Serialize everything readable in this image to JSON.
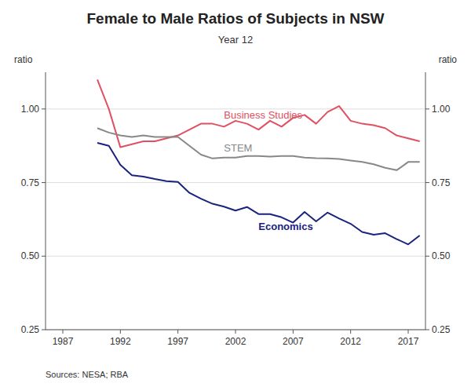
{
  "chart_data": {
    "type": "line",
    "title": "Female to Male Ratios of Subjects in NSW",
    "subtitle": "Year 12",
    "y_label": "ratio",
    "y2_label": "ratio",
    "source": "Sources: NESA; RBA",
    "x": [
      1990,
      1991,
      1992,
      1993,
      1994,
      1995,
      1996,
      1997,
      1998,
      1999,
      2000,
      2001,
      2002,
      2003,
      2004,
      2005,
      2006,
      2007,
      2008,
      2009,
      2010,
      2011,
      2012,
      2013,
      2014,
      2015,
      2016,
      2017,
      2018
    ],
    "series": [
      {
        "name": "Business Studies",
        "color": "#e05060",
        "values": [
          1.1,
          1.0,
          0.87,
          0.88,
          0.89,
          0.89,
          0.9,
          0.91,
          0.93,
          0.95,
          0.95,
          0.94,
          0.96,
          0.95,
          0.93,
          0.96,
          0.94,
          0.97,
          0.98,
          0.95,
          0.99,
          1.01,
          0.96,
          0.95,
          0.945,
          0.935,
          0.91,
          0.9,
          0.89
        ]
      },
      {
        "name": "STEM",
        "color": "#888888",
        "values": [
          0.935,
          0.92,
          0.91,
          0.905,
          0.91,
          0.905,
          0.905,
          0.905,
          0.875,
          0.845,
          0.832,
          0.835,
          0.835,
          0.84,
          0.84,
          0.838,
          0.84,
          0.84,
          0.835,
          0.833,
          0.832,
          0.83,
          0.825,
          0.82,
          0.812,
          0.8,
          0.792,
          0.82,
          0.82
        ]
      },
      {
        "name": "Economics",
        "color": "#1a237e",
        "values": [
          0.885,
          0.875,
          0.81,
          0.775,
          0.77,
          0.762,
          0.755,
          0.752,
          0.715,
          0.695,
          0.678,
          0.668,
          0.655,
          0.667,
          0.643,
          0.643,
          0.632,
          0.614,
          0.65,
          0.618,
          0.648,
          0.628,
          0.61,
          0.582,
          0.573,
          0.578,
          0.558,
          0.54,
          0.57
        ]
      }
    ],
    "xlim": [
      1985.5,
      2018.5
    ],
    "xticks": [
      1987,
      1992,
      1997,
      2002,
      2007,
      2012,
      2017
    ],
    "ylim": [
      0.25,
      1.125
    ],
    "yticks": [
      0.25,
      {
        "value": 0.5,
        "label": "0.50"
      },
      0.75,
      {
        "value": 1.0,
        "label": "1.00"
      }
    ],
    "y2lim": [
      0.25,
      1.125
    ],
    "y2ticks": [
      0.25,
      {
        "value": 0.5,
        "label": "0.50"
      },
      0.75,
      {
        "value": 1.0,
        "label": "1.00"
      }
    ],
    "grid": true
  }
}
